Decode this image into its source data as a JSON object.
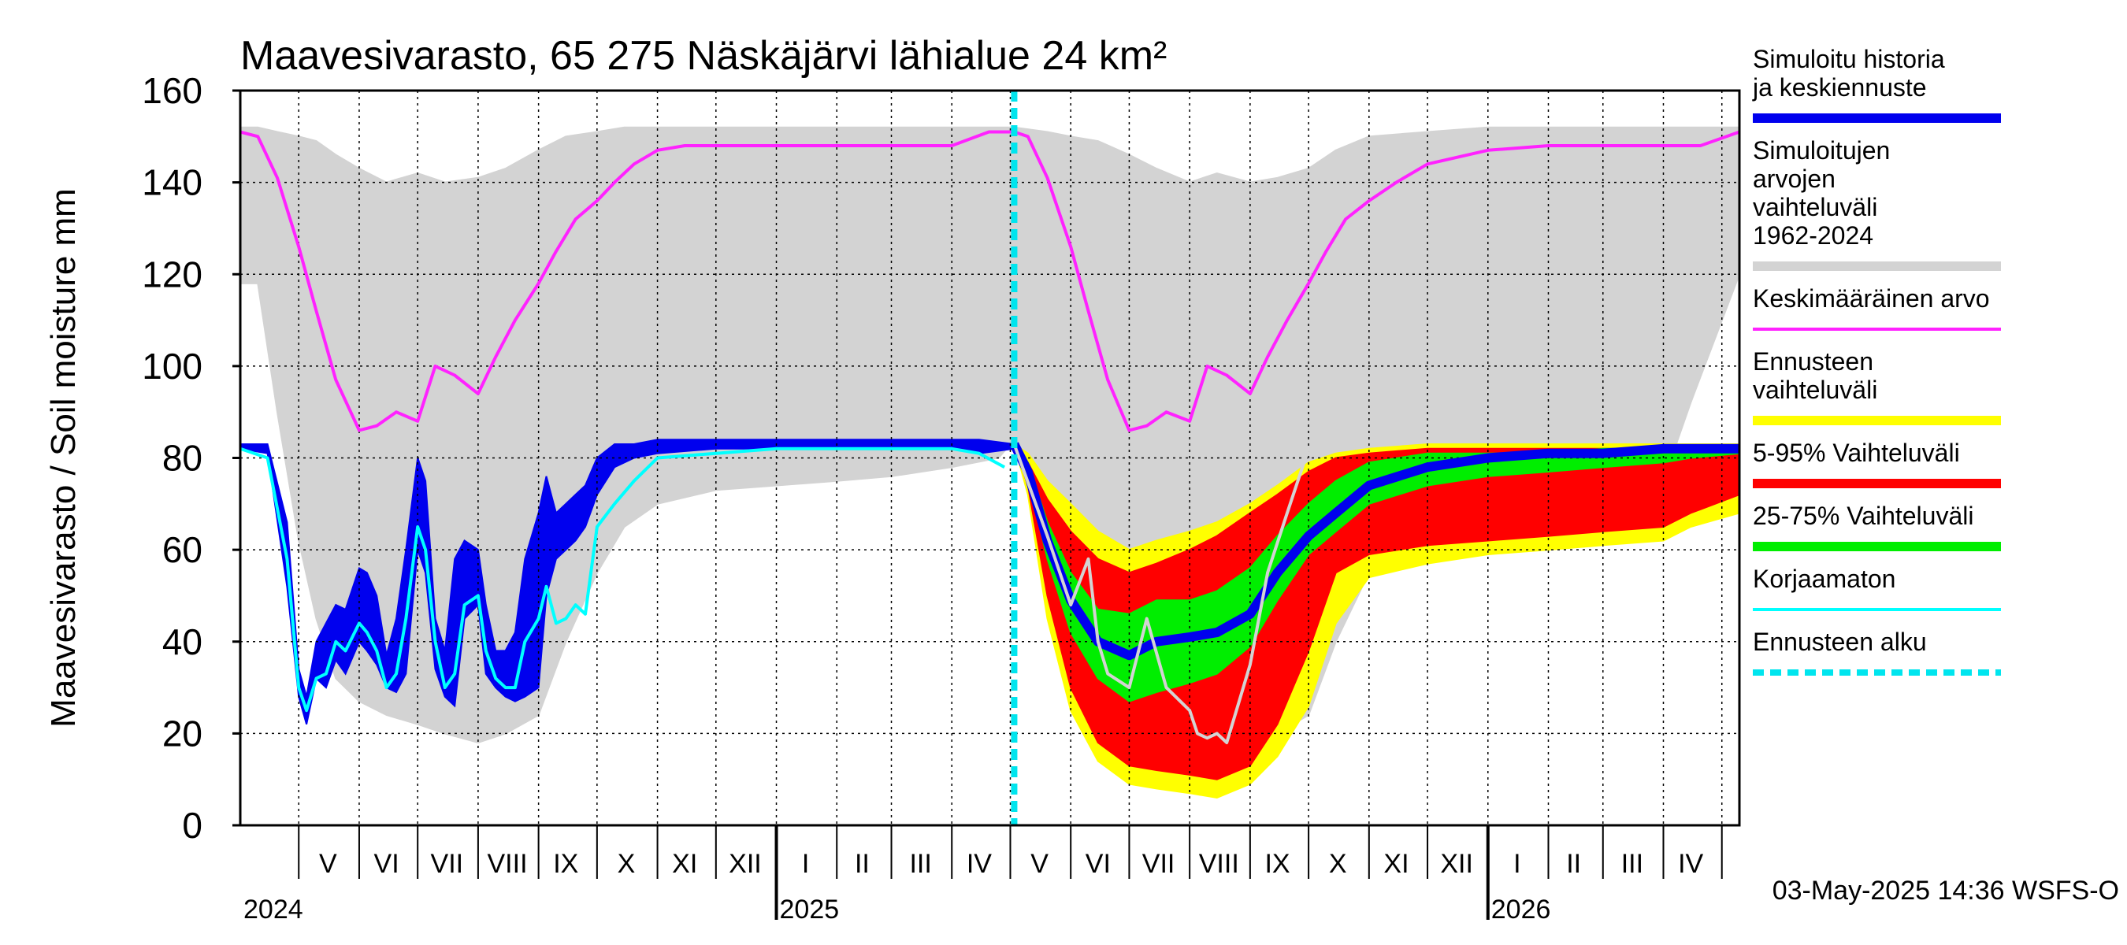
{
  "chart_data": {
    "type": "area",
    "title": "Maavesivarasto, 65 275 Näskäjärvi lähialue 24 km²",
    "ylabel": "Maavesivarasto / Soil moisture   mm",
    "ylim": [
      0,
      160
    ],
    "yticks": [
      0,
      20,
      40,
      60,
      80,
      100,
      120,
      140,
      160
    ],
    "xlim": [
      "2024-04-01",
      "2026-05-10"
    ],
    "grid": true,
    "legend_position": "right",
    "forecast_start": "2025-05-03",
    "month_labels": [
      {
        "label": "V",
        "date": "2024-05-16"
      },
      {
        "label": "VI",
        "date": "2024-06-15"
      },
      {
        "label": "VII",
        "date": "2024-07-16"
      },
      {
        "label": "VIII",
        "date": "2024-08-16"
      },
      {
        "label": "IX",
        "date": "2024-09-15"
      },
      {
        "label": "X",
        "date": "2024-10-16"
      },
      {
        "label": "XI",
        "date": "2024-11-15"
      },
      {
        "label": "XII",
        "date": "2024-12-16"
      },
      {
        "label": "I",
        "date": "2025-01-16"
      },
      {
        "label": "II",
        "date": "2025-02-14"
      },
      {
        "label": "III",
        "date": "2025-03-16"
      },
      {
        "label": "IV",
        "date": "2025-04-15"
      },
      {
        "label": "V",
        "date": "2025-05-16"
      },
      {
        "label": "VI",
        "date": "2025-06-15"
      },
      {
        "label": "VII",
        "date": "2025-07-16"
      },
      {
        "label": "VIII",
        "date": "2025-08-16"
      },
      {
        "label": "IX",
        "date": "2025-09-15"
      },
      {
        "label": "X",
        "date": "2025-10-16"
      },
      {
        "label": "XI",
        "date": "2025-11-15"
      },
      {
        "label": "XII",
        "date": "2025-12-16"
      },
      {
        "label": "I",
        "date": "2026-01-16"
      },
      {
        "label": "II",
        "date": "2026-02-14"
      },
      {
        "label": "III",
        "date": "2026-03-16"
      },
      {
        "label": "IV",
        "date": "2026-04-15"
      }
    ],
    "year_labels": [
      {
        "label": "2024",
        "date": "2024-04-01"
      },
      {
        "label": "2025",
        "date": "2025-01-01"
      },
      {
        "label": "2026",
        "date": "2026-01-01"
      }
    ],
    "legend": [
      {
        "label": "Simuloitu historia ja keskiennuste",
        "color": "#0000ee",
        "style": "thick"
      },
      {
        "label": "Simuloitujen arvojen vaihteluväli 1962-2024",
        "color": "#d3d3d3",
        "style": "thick"
      },
      {
        "label": "Keskimääräinen arvo",
        "color": "#ff22ff",
        "style": "line"
      },
      {
        "label": "Ennusteen vaihteluväli",
        "color": "#ffff00",
        "style": "thick"
      },
      {
        "label": "5-95% Vaihteluväli",
        "color": "#ff0000",
        "style": "thick"
      },
      {
        "label": "25-75% Vaihteluväli",
        "color": "#00ee00",
        "style": "thick"
      },
      {
        "label": "Korjaamaton",
        "color": "#00ffff",
        "style": "line"
      },
      {
        "label": "Ennusteen alku",
        "color": "#00e5ee",
        "style": "dashed"
      }
    ],
    "footer": "03-May-2025 14:36 WSFS-O",
    "series": [
      {
        "name": "Simuloitujen arvojen vaihteluväli 1962-2024",
        "role": "band",
        "color": "#d3d3d3",
        "x": [
          "2024-04-01",
          "2024-04-10",
          "2024-04-20",
          "2024-05-01",
          "2024-05-10",
          "2024-05-20",
          "2024-06-01",
          "2024-06-15",
          "2024-07-01",
          "2024-07-15",
          "2024-08-01",
          "2024-08-15",
          "2024-09-01",
          "2024-09-15",
          "2024-10-01",
          "2024-10-15",
          "2024-11-01",
          "2024-12-01",
          "2025-01-01",
          "2025-02-01",
          "2025-03-01",
          "2025-04-01",
          "2025-04-25",
          "2025-05-03",
          "2025-05-20",
          "2025-06-01",
          "2025-06-15",
          "2025-07-01",
          "2025-07-15",
          "2025-08-01",
          "2025-08-15",
          "2025-09-01",
          "2025-09-15",
          "2025-10-01",
          "2025-10-15",
          "2025-11-01",
          "2025-12-01",
          "2026-01-01",
          "2026-02-01",
          "2026-03-01",
          "2026-04-01",
          "2026-04-15",
          "2026-05-10"
        ],
        "low": [
          118,
          118,
          90,
          62,
          45,
          32,
          27,
          24,
          22,
          20,
          18,
          20,
          24,
          40,
          55,
          65,
          70,
          73,
          74,
          75,
          76,
          78,
          80,
          84,
          62,
          45,
          32,
          27,
          24,
          22,
          20,
          18,
          20,
          24,
          40,
          55,
          65,
          70,
          73,
          74,
          75,
          92,
          120
        ],
        "high": [
          152,
          152,
          151,
          150,
          149,
          146,
          143,
          140,
          142,
          140,
          141,
          143,
          147,
          150,
          151,
          152,
          152,
          152,
          152,
          152,
          152,
          152,
          152,
          152,
          151,
          150,
          149,
          146,
          143,
          140,
          142,
          140,
          141,
          143,
          147,
          150,
          151,
          152,
          152,
          152,
          152,
          152,
          152
        ]
      },
      {
        "name": "Ennusteen vaihteluväli",
        "role": "band",
        "color": "#ffff00",
        "x": [
          "2025-05-03",
          "2025-05-10",
          "2025-05-20",
          "2025-06-01",
          "2025-06-15",
          "2025-07-01",
          "2025-07-15",
          "2025-08-01",
          "2025-08-15",
          "2025-09-01",
          "2025-09-15",
          "2025-10-01",
          "2025-10-15",
          "2025-11-01",
          "2025-12-01",
          "2026-01-01",
          "2026-02-01",
          "2026-03-01",
          "2026-04-01",
          "2026-04-15",
          "2026-05-10"
        ],
        "low": [
          83,
          72,
          45,
          25,
          14,
          9,
          8,
          7,
          6,
          9,
          15,
          26,
          44,
          54,
          57,
          59,
          60,
          61,
          62,
          65,
          68
        ],
        "high": [
          83,
          81,
          75,
          70,
          64,
          60,
          62,
          64,
          66,
          70,
          74,
          79,
          81,
          82,
          83,
          83,
          83,
          83,
          83,
          83,
          83
        ]
      },
      {
        "name": "5-95% Vaihteluväli",
        "role": "band",
        "color": "#ff0000",
        "x": [
          "2025-05-03",
          "2025-05-10",
          "2025-05-20",
          "2025-06-01",
          "2025-06-15",
          "2025-07-01",
          "2025-07-15",
          "2025-08-01",
          "2025-08-15",
          "2025-09-01",
          "2025-09-15",
          "2025-10-01",
          "2025-10-15",
          "2025-11-01",
          "2025-12-01",
          "2026-01-01",
          "2026-02-01",
          "2026-03-01",
          "2026-04-01",
          "2026-04-15",
          "2026-05-10"
        ],
        "low": [
          83,
          74,
          50,
          30,
          18,
          13,
          12,
          11,
          10,
          13,
          22,
          38,
          55,
          59,
          61,
          62,
          63,
          64,
          65,
          68,
          72
        ],
        "high": [
          83,
          79,
          71,
          64,
          58,
          55,
          57,
          60,
          63,
          68,
          72,
          77,
          80,
          81,
          82,
          82,
          82,
          82,
          82,
          82,
          82
        ]
      },
      {
        "name": "25-75% Vaihteluväli",
        "role": "band",
        "color": "#00ee00",
        "x": [
          "2025-05-03",
          "2025-05-10",
          "2025-05-20",
          "2025-06-01",
          "2025-06-15",
          "2025-07-01",
          "2025-07-15",
          "2025-08-01",
          "2025-08-15",
          "2025-09-01",
          "2025-09-15",
          "2025-10-01",
          "2025-10-15",
          "2025-11-01",
          "2025-12-01",
          "2026-01-01",
          "2026-02-01",
          "2026-03-01",
          "2026-04-01",
          "2026-04-15",
          "2026-05-10"
        ],
        "low": [
          82,
          76,
          58,
          42,
          32,
          27,
          29,
          31,
          33,
          39,
          49,
          59,
          64,
          70,
          74,
          76,
          77,
          78,
          79,
          80,
          81
        ],
        "high": [
          82,
          79,
          66,
          55,
          47,
          46,
          49,
          49,
          51,
          56,
          63,
          70,
          75,
          79,
          81,
          81,
          81,
          82,
          82,
          82,
          82
        ]
      },
      {
        "name": "Simuloitu historia ja keskiennuste",
        "role": "band",
        "color": "#0000ee",
        "x": [
          "2024-04-01",
          "2024-04-15",
          "2024-04-25",
          "2024-05-01",
          "2024-05-05",
          "2024-05-10",
          "2024-05-15",
          "2024-05-20",
          "2024-05-25",
          "2024-06-01",
          "2024-06-05",
          "2024-06-10",
          "2024-06-15",
          "2024-06-20",
          "2024-06-25",
          "2024-07-01",
          "2024-07-05",
          "2024-07-10",
          "2024-07-15",
          "2024-07-20",
          "2024-07-25",
          "2024-08-01",
          "2024-08-05",
          "2024-08-10",
          "2024-08-15",
          "2024-08-20",
          "2024-08-25",
          "2024-09-01",
          "2024-09-05",
          "2024-09-10",
          "2024-09-15",
          "2024-09-20",
          "2024-09-25",
          "2024-10-01",
          "2024-10-10",
          "2024-10-20",
          "2024-11-01",
          "2024-12-01",
          "2025-01-01",
          "2025-02-01",
          "2025-03-01",
          "2025-04-01",
          "2025-04-15",
          "2025-05-03"
        ],
        "low": [
          82,
          81,
          52,
          28,
          22,
          32,
          30,
          36,
          33,
          40,
          38,
          35,
          30,
          29,
          33,
          60,
          55,
          34,
          28,
          26,
          45,
          48,
          33,
          30,
          28,
          27,
          28,
          30,
          50,
          58,
          60,
          62,
          65,
          72,
          78,
          80,
          81,
          82,
          82,
          82,
          82,
          82,
          81,
          82
        ],
        "high": [
          83,
          83,
          66,
          34,
          28,
          40,
          44,
          48,
          47,
          56,
          55,
          50,
          37,
          45,
          60,
          80,
          75,
          45,
          38,
          58,
          62,
          60,
          48,
          38,
          38,
          42,
          58,
          68,
          76,
          68,
          70,
          72,
          74,
          80,
          83,
          83,
          84,
          84,
          84,
          84,
          84,
          84,
          84,
          83
        ]
      },
      {
        "name": "Simuloitu historia ja keskiennuste",
        "role": "line",
        "color": "#0000ee",
        "x": [
          "2025-05-03",
          "2025-05-10",
          "2025-05-20",
          "2025-06-01",
          "2025-06-15",
          "2025-07-01",
          "2025-07-15",
          "2025-08-01",
          "2025-08-15",
          "2025-09-01",
          "2025-09-15",
          "2025-10-01",
          "2025-10-15",
          "2025-11-01",
          "2025-12-01",
          "2026-01-01",
          "2026-02-01",
          "2026-03-01",
          "2026-04-01",
          "2026-05-10"
        ],
        "y": [
          83,
          77,
          62,
          49,
          40,
          37,
          40,
          41,
          42,
          46,
          55,
          63,
          68,
          74,
          78,
          80,
          81,
          81,
          82,
          82
        ]
      },
      {
        "name": "Keskimääräinen arvo",
        "role": "line",
        "color": "#ff22ff",
        "x": [
          "2024-04-01",
          "2024-04-10",
          "2024-04-20",
          "2024-05-01",
          "2024-05-10",
          "2024-05-20",
          "2024-06-01",
          "2024-06-10",
          "2024-06-20",
          "2024-07-01",
          "2024-07-10",
          "2024-07-20",
          "2024-08-01",
          "2024-08-10",
          "2024-08-20",
          "2024-09-01",
          "2024-09-10",
          "2024-09-20",
          "2024-10-01",
          "2024-10-10",
          "2024-10-20",
          "2024-11-01",
          "2024-11-15",
          "2024-12-01",
          "2025-01-01",
          "2025-02-01",
          "2025-03-01",
          "2025-04-01",
          "2025-04-20",
          "2025-05-03",
          "2025-05-10",
          "2025-05-20",
          "2025-06-01",
          "2025-06-10",
          "2025-06-20",
          "2025-07-01",
          "2025-07-10",
          "2025-07-20",
          "2025-08-01",
          "2025-08-10",
          "2025-08-20",
          "2025-09-01",
          "2025-09-10",
          "2025-09-20",
          "2025-10-01",
          "2025-10-10",
          "2025-10-20",
          "2025-11-01",
          "2025-11-15",
          "2025-12-01",
          "2026-01-01",
          "2026-02-01",
          "2026-03-01",
          "2026-04-01",
          "2026-04-20",
          "2026-05-10"
        ],
        "y": [
          151,
          150,
          141,
          126,
          112,
          97,
          86,
          87,
          90,
          88,
          100,
          98,
          94,
          102,
          110,
          118,
          125,
          132,
          136,
          140,
          144,
          147,
          148,
          148,
          148,
          148,
          148,
          148,
          151,
          151,
          150,
          141,
          126,
          112,
          97,
          86,
          87,
          90,
          88,
          100,
          98,
          94,
          102,
          110,
          118,
          125,
          132,
          136,
          140,
          144,
          147,
          148,
          148,
          148,
          148,
          151
        ]
      },
      {
        "name": "Korjaamaton",
        "role": "line",
        "color": "#00ffff",
        "x": [
          "2024-04-01",
          "2024-04-15",
          "2024-04-25",
          "2024-05-01",
          "2024-05-05",
          "2024-05-10",
          "2024-05-15",
          "2024-05-20",
          "2024-05-25",
          "2024-06-01",
          "2024-06-05",
          "2024-06-10",
          "2024-06-15",
          "2024-06-20",
          "2024-06-25",
          "2024-07-01",
          "2024-07-05",
          "2024-07-10",
          "2024-07-15",
          "2024-07-20",
          "2024-07-25",
          "2024-08-01",
          "2024-08-05",
          "2024-08-10",
          "2024-08-15",
          "2024-08-20",
          "2024-08-25",
          "2024-09-01",
          "2024-09-05",
          "2024-09-10",
          "2024-09-15",
          "2024-09-20",
          "2024-09-25",
          "2024-10-01",
          "2024-10-10",
          "2024-10-20",
          "2024-11-01",
          "2024-12-01",
          "2025-01-01",
          "2025-02-01",
          "2025-03-01",
          "2025-04-01",
          "2025-04-15",
          "2025-04-28"
        ],
        "y": [
          82,
          80,
          58,
          30,
          25,
          32,
          33,
          40,
          38,
          44,
          42,
          38,
          30,
          33,
          45,
          65,
          60,
          40,
          30,
          33,
          48,
          50,
          38,
          32,
          30,
          30,
          40,
          45,
          52,
          44,
          45,
          48,
          46,
          65,
          70,
          75,
          80,
          81,
          82,
          82,
          82,
          82,
          81,
          78
        ]
      },
      {
        "name": "Korjaamaton (forecast history)",
        "role": "line",
        "color": "#d3d3d3",
        "x": [
          "2025-05-03",
          "2025-05-20",
          "2025-06-01",
          "2025-06-10",
          "2025-06-15",
          "2025-06-20",
          "2025-07-01",
          "2025-07-10",
          "2025-07-20",
          "2025-08-01",
          "2025-08-05",
          "2025-08-10",
          "2025-08-15",
          "2025-08-20",
          "2025-08-25",
          "2025-09-01",
          "2025-09-10",
          "2025-09-20",
          "2025-10-01"
        ],
        "y": [
          83,
          63,
          48,
          58,
          40,
          33,
          30,
          45,
          30,
          25,
          20,
          19,
          20,
          18,
          25,
          35,
          55,
          68,
          82
        ]
      }
    ]
  }
}
